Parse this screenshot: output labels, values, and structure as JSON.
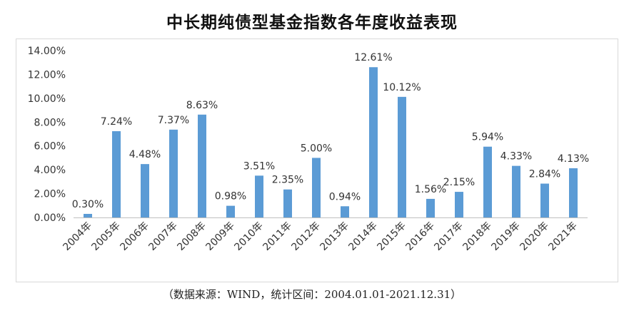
{
  "chart_data": {
    "type": "bar",
    "title": "中长期纯债型基金指数各年度收益表现",
    "source_note": "（数据来源：WIND，统计区间：2004.01.01-2021.12.31）",
    "categories": [
      "2004年",
      "2005年",
      "2006年",
      "2007年",
      "2008年",
      "2009年",
      "2010年",
      "2011年",
      "2012年",
      "2013年",
      "2014年",
      "2015年",
      "2016年",
      "2017年",
      "2018年",
      "2019年",
      "2020年",
      "2021年"
    ],
    "values": [
      0.3,
      7.24,
      4.48,
      7.37,
      8.63,
      0.98,
      3.51,
      2.35,
      5.0,
      0.94,
      12.61,
      10.12,
      1.56,
      2.15,
      5.94,
      4.33,
      2.84,
      4.13
    ],
    "data_labels": [
      "0.30%",
      "7.24%",
      "4.48%",
      "7.37%",
      "8.63%",
      "0.98%",
      "3.51%",
      "2.35%",
      "5.00%",
      "0.94%",
      "12.61%",
      "10.12%",
      "1.56%",
      "2.15%",
      "5.94%",
      "4.33%",
      "2.84%",
      "4.13%"
    ],
    "y_ticks": [
      "0.00%",
      "2.00%",
      "4.00%",
      "6.00%",
      "8.00%",
      "10.00%",
      "12.00%",
      "14.00%"
    ],
    "ylim": [
      0,
      14
    ],
    "grid": false,
    "legend": "none",
    "bar_color": "#5b9bd5",
    "xlabel": "",
    "ylabel": ""
  }
}
